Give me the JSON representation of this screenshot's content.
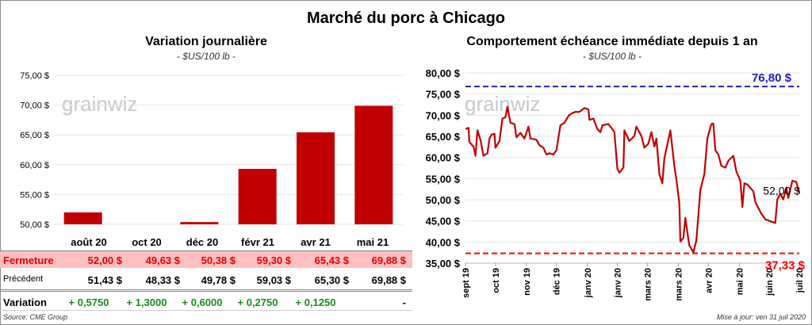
{
  "title": "Marché du porc à Chicago",
  "logo_text": "grainwiz",
  "chart_data": [
    {
      "type": "bar",
      "title": "Variation journalière",
      "subtitle": "- $US/100 lb -",
      "categories": [
        "août 20",
        "oct 20",
        "déc 20",
        "févr 21",
        "avr 21",
        "mai 21"
      ],
      "values": [
        52.0,
        49.63,
        50.38,
        59.3,
        65.43,
        69.88
      ],
      "ylim": [
        50,
        75
      ],
      "yticks": [
        "50,00 $",
        "55,00 $",
        "60,00 $",
        "65,00 $",
        "70,00 $",
        "75,00 $"
      ],
      "color": "#c00000"
    },
    {
      "type": "line",
      "title": "Comportement échéance immédiate depuis 1 an",
      "subtitle": "- $US/100 lb -",
      "xlabel_unit": "days since 1 Sept 2019",
      "x": [
        0,
        3,
        4,
        8,
        10,
        12,
        15,
        16,
        18,
        22,
        24,
        26,
        29,
        30,
        34,
        37,
        40,
        42,
        45,
        49,
        51,
        55,
        59,
        63,
        65,
        71,
        74,
        78,
        81,
        84,
        88,
        91,
        95,
        99,
        103,
        106,
        110,
        114,
        119,
        123,
        124,
        128,
        132,
        135,
        137,
        143,
        147,
        149,
        152,
        154,
        158,
        159,
        164,
        169,
        171,
        176,
        179,
        183,
        186,
        189,
        191,
        194,
        197,
        199,
        203,
        205,
        209,
        211,
        214,
        215,
        218,
        220,
        222,
        224,
        228,
        231,
        235,
        239,
        242,
        246,
        248,
        250,
        253,
        256,
        260,
        263,
        268,
        271,
        275,
        277,
        279,
        282,
        288,
        290,
        296,
        300,
        306,
        310,
        312,
        315,
        318,
        321,
        323,
        327,
        331,
        334
      ],
      "y": [
        66.7,
        67,
        63.6,
        62.6,
        60.4,
        66.4,
        64.2,
        62.9,
        60.4,
        61,
        64.5,
        65.4,
        65.6,
        62.3,
        63.9,
        69.2,
        69.5,
        72,
        68.2,
        67.9,
        64.8,
        65.8,
        64.5,
        67.3,
        64.5,
        64.2,
        62.9,
        62.3,
        60.7,
        61,
        60.7,
        61.7,
        67.6,
        68.2,
        69.8,
        70.4,
        70.8,
        70.8,
        71.7,
        71.4,
        68.9,
        69.2,
        66.7,
        66,
        67.6,
        67.9,
        66.7,
        66,
        57.3,
        56.4,
        57.6,
        66.4,
        63.9,
        65.1,
        67.3,
        65.1,
        62.3,
        63.3,
        66,
        62.6,
        64.5,
        56.1,
        53.9,
        59.8,
        64.2,
        66.4,
        58,
        54.8,
        49.2,
        40.1,
        41,
        45.7,
        42.3,
        39.2,
        37.6,
        40.4,
        52.3,
        56.1,
        64.5,
        67.9,
        68,
        61.7,
        60.7,
        58,
        57.6,
        59.2,
        60.4,
        56.7,
        54.5,
        48.3,
        53.9,
        53.6,
        52,
        49.5,
        46.7,
        45.4,
        44.8,
        44.5,
        50.1,
        51.4,
        50.1,
        52.9,
        50.4,
        54.5,
        54.2,
        51.7
      ],
      "xticks": [
        {
          "x": 0,
          "label": "sept 19"
        },
        {
          "x": 30,
          "label": "oct 19"
        },
        {
          "x": 61,
          "label": "nov 19"
        },
        {
          "x": 91,
          "label": "déc 19"
        },
        {
          "x": 122,
          "label": "janv 20"
        },
        {
          "x": 152,
          "label": "janv 20"
        },
        {
          "x": 182,
          "label": "mars 20"
        },
        {
          "x": 213,
          "label": "mars 20"
        },
        {
          "x": 243,
          "label": "avr 20"
        },
        {
          "x": 274,
          "label": "mai 20"
        },
        {
          "x": 304,
          "label": "juin 20"
        },
        {
          "x": 334,
          "label": "juil 20"
        }
      ],
      "xlim": [
        0,
        334
      ],
      "ylim": [
        35,
        80
      ],
      "yticks": [
        "35,00 $",
        "40,00 $",
        "45,00 $",
        "50,00 $",
        "55,00 $",
        "60,00 $",
        "65,00 $",
        "70,00 $",
        "75,00 $",
        "80,00 $"
      ],
      "max_line": {
        "value": 76.8,
        "label": "76,80 $",
        "color": "#2020c0"
      },
      "min_line": {
        "value": 37.33,
        "label": "37,33 $",
        "color": "#ff0000"
      },
      "last_label": "52,00 $",
      "color": "#c00000"
    }
  ],
  "table": {
    "headers": [
      "août 20",
      "oct 20",
      "déc 20",
      "févr 21",
      "avr 21",
      "mai 21"
    ],
    "rows": [
      {
        "label": "Fermeture",
        "values": [
          "52,00  $",
          "49,63  $",
          "50,38  $",
          "59,30  $",
          "65,43  $",
          "69,88  $"
        ]
      },
      {
        "label": "Précédent",
        "values": [
          "51,43  $",
          "48,33  $",
          "49,78  $",
          "59,03  $",
          "65,30  $",
          "69,88  $"
        ]
      },
      {
        "label": "Variation",
        "values": [
          "+ 0,5750",
          "+ 1,3000",
          "+ 0,6000",
          "+ 0,2750",
          "+ 0,1250",
          "-"
        ]
      }
    ]
  },
  "source": "Source: CME Group",
  "updated": "Mise à jour: ven 31 juil 2020"
}
